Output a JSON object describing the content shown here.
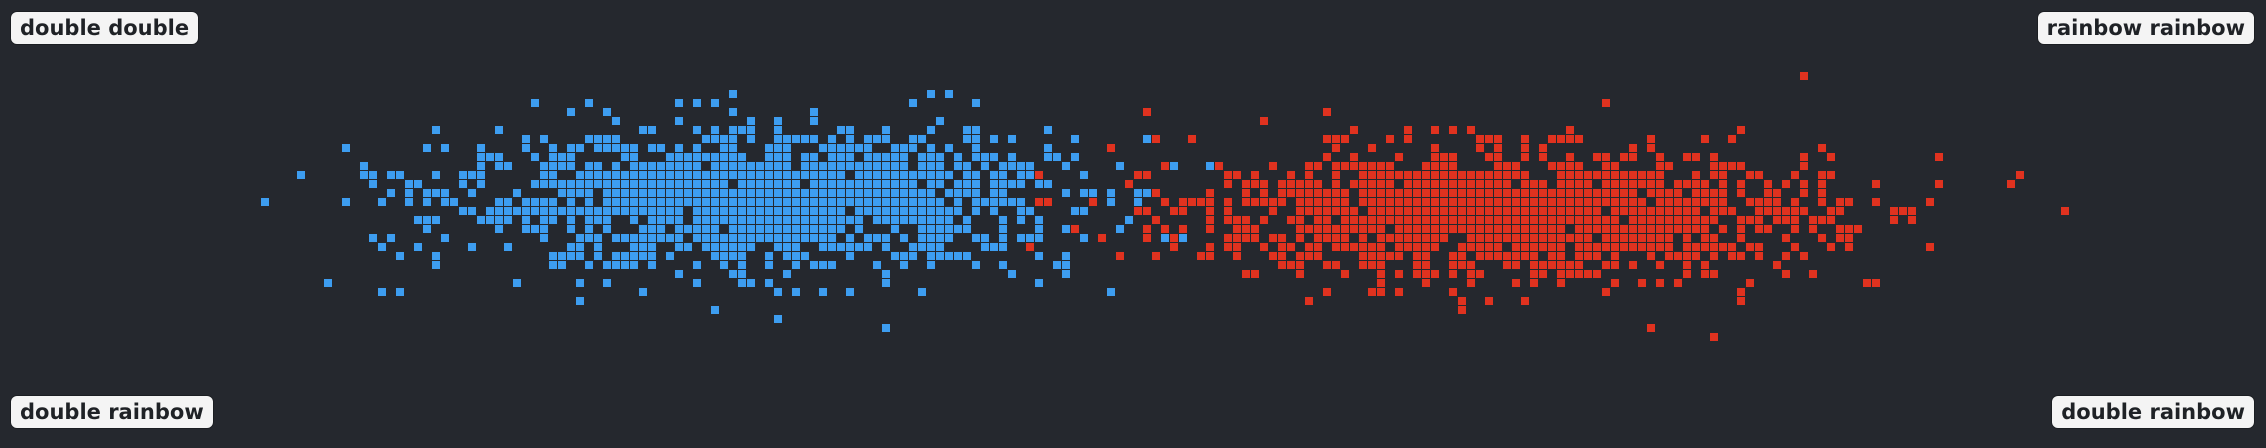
{
  "labels": {
    "top_left": "double double",
    "top_right": "rainbow rainbow",
    "bottom_left": "double rainbow",
    "bottom_right": "double rainbow"
  },
  "colors": {
    "background": "#25282e",
    "blue": "#3d9df0",
    "red": "#e0321f"
  },
  "chart_data": {
    "type": "scatter",
    "xlim": [
      0,
      1
    ],
    "ylim": [
      0,
      1
    ],
    "grid": false,
    "legend": "none",
    "series": [
      {
        "color": "#3d9df0",
        "cluster": {
          "cx": 0.335,
          "cy": 0.56,
          "sx": 0.068,
          "sy": 0.075,
          "count": 1400
        },
        "points": [
          [
            0.141,
            0.375
          ],
          [
            0.158,
            0.625
          ],
          [
            0.168,
            0.357
          ],
          [
            0.176,
            0.357
          ],
          [
            0.172,
            0.482
          ],
          [
            0.178,
            0.563
          ],
          [
            0.194,
            0.563
          ],
          [
            0.204,
            0.608
          ],
          [
            0.41,
            0.795
          ],
          [
            0.389,
            0.268
          ],
          [
            0.427,
            0.786
          ],
          [
            0.32,
            0.795
          ],
          [
            0.49,
            0.348
          ],
          [
            0.47,
            0.402
          ]
        ]
      },
      {
        "color": "#e0321f",
        "cluster": {
          "cx": 0.665,
          "cy": 0.53,
          "sx": 0.068,
          "sy": 0.07,
          "count": 1400
        },
        "points": [
          [
            0.886,
            0.59
          ],
          [
            0.854,
            0.59
          ],
          [
            0.854,
            0.661
          ],
          [
            0.84,
            0.536
          ],
          [
            0.826,
            0.607
          ],
          [
            0.808,
            0.661
          ],
          [
            0.755,
            0.259
          ],
          [
            0.727,
            0.286
          ],
          [
            0.706,
            0.786
          ],
          [
            0.582,
            0.759
          ],
          [
            0.508,
            0.696
          ],
          [
            0.488,
            0.679
          ],
          [
            0.54,
            0.59
          ],
          [
            0.515,
            0.482
          ]
        ]
      }
    ]
  }
}
